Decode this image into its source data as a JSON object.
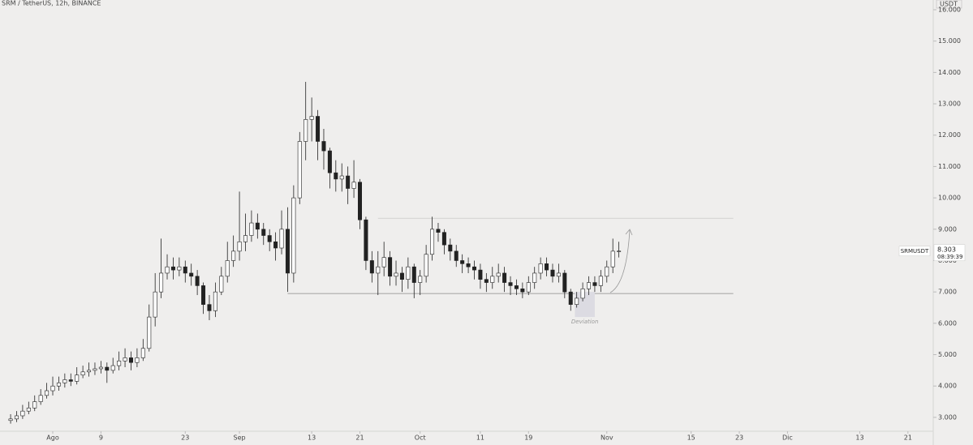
{
  "chart_data": {
    "type": "candlestick",
    "title": "SRM / TetherUS, 12h, BINANCE",
    "currency": "USDT",
    "symbol": "SRMUSDT",
    "countdown": "08:39:39",
    "last_price": {
      "value": 8.303,
      "label": "8.303"
    },
    "annotation": "Deviation",
    "up_color": "#ffffff",
    "down_color": "#222222",
    "edge_color": "#222222",
    "xlim": [
      -8.76,
      146.2
    ],
    "ylim": [
      2.61,
      16.31
    ],
    "xticks": [
      {
        "value": 0,
        "label": "Ago"
      },
      {
        "value": 8,
        "label": "9"
      },
      {
        "value": 22,
        "label": "23"
      },
      {
        "value": 31,
        "label": "Sep"
      },
      {
        "value": 43,
        "label": "13"
      },
      {
        "value": 51,
        "label": "21"
      },
      {
        "value": 61,
        "label": "Oct"
      },
      {
        "value": 71,
        "label": "11"
      },
      {
        "value": 79,
        "label": "19"
      },
      {
        "value": 92,
        "label": "Nov"
      },
      {
        "value": 106,
        "label": "15"
      },
      {
        "value": 114,
        "label": "23"
      },
      {
        "value": 122,
        "label": "Dic"
      },
      {
        "value": 134,
        "label": "13"
      },
      {
        "value": 142,
        "label": "21"
      }
    ],
    "yticks": [
      {
        "value": 3,
        "label": "3.000"
      },
      {
        "value": 4,
        "label": "4.000"
      },
      {
        "value": 5,
        "label": "5.000"
      },
      {
        "value": 6,
        "label": "6.000"
      },
      {
        "value": 7,
        "label": "7.000"
      },
      {
        "value": 8,
        "label": "8.000"
      },
      {
        "value": 9,
        "label": "9.000"
      },
      {
        "value": 10,
        "label": "10.000"
      },
      {
        "value": 11,
        "label": "11.000"
      },
      {
        "value": 12,
        "label": "12.000"
      },
      {
        "value": 13,
        "label": "13.000"
      },
      {
        "value": 14,
        "label": "14.000"
      },
      {
        "value": 15,
        "label": "15.000"
      },
      {
        "value": 16,
        "label": "16.000"
      }
    ],
    "levels": [
      {
        "value": 9.35,
        "from": 54,
        "to": 113
      },
      {
        "value": 6.95,
        "from": 39,
        "to": 113
      }
    ],
    "deviation_box": {
      "from": 86.7,
      "to": 90,
      "top": 7.0,
      "bottom": 6.2
    },
    "x": [
      -7,
      -6,
      -5,
      -4,
      -3,
      -2,
      -1,
      0,
      1,
      2,
      3,
      4,
      5,
      6,
      7,
      8,
      9,
      10,
      11,
      12,
      13,
      14,
      15,
      16,
      17,
      18,
      19,
      20,
      21,
      22,
      23,
      24,
      25,
      26,
      27,
      28,
      29,
      30,
      31,
      32,
      33,
      34,
      35,
      36,
      37,
      38,
      39,
      40,
      41,
      42,
      43,
      44,
      45,
      46,
      47,
      48,
      49,
      50,
      51,
      52,
      53,
      54,
      55,
      56,
      57,
      58,
      59,
      60,
      61,
      62,
      63,
      64,
      65,
      66,
      67,
      68,
      69,
      70,
      71,
      72,
      73,
      74,
      75,
      76,
      77,
      78,
      79,
      80,
      81,
      82,
      83,
      84,
      85,
      86,
      87,
      88,
      89,
      90,
      91,
      92,
      93,
      94
    ],
    "open": [
      2.9,
      2.95,
      3.05,
      3.2,
      3.3,
      3.5,
      3.7,
      3.85,
      4.0,
      4.1,
      4.2,
      4.15,
      4.35,
      4.45,
      4.5,
      4.55,
      4.6,
      4.5,
      4.65,
      4.8,
      4.9,
      4.75,
      4.9,
      5.2,
      6.2,
      7.0,
      7.6,
      7.8,
      7.7,
      7.8,
      7.6,
      7.5,
      7.2,
      6.6,
      6.4,
      7.0,
      7.5,
      8.0,
      8.3,
      8.6,
      8.8,
      9.2,
      9.0,
      8.8,
      8.6,
      8.4,
      9.0,
      7.6,
      10.0,
      11.8,
      12.5,
      12.6,
      11.8,
      11.5,
      10.8,
      10.6,
      10.7,
      10.3,
      10.5,
      9.3,
      8.0,
      7.6,
      7.8,
      8.1,
      7.5,
      7.6,
      7.4,
      7.8,
      7.3,
      7.5,
      8.2,
      9.0,
      8.9,
      8.5,
      8.3,
      8.0,
      7.9,
      7.8,
      7.7,
      7.4,
      7.3,
      7.5,
      7.6,
      7.3,
      7.2,
      7.1,
      7.0,
      7.3,
      7.6,
      7.9,
      7.7,
      7.5,
      7.6,
      7.0,
      6.6,
      6.8,
      7.1,
      7.3,
      7.2,
      7.5,
      7.8,
      8.3
    ],
    "high": [
      3.1,
      3.2,
      3.4,
      3.5,
      3.7,
      3.9,
      4.1,
      4.3,
      4.3,
      4.4,
      4.4,
      4.6,
      4.65,
      4.75,
      4.75,
      4.8,
      4.75,
      4.9,
      5.1,
      5.2,
      5.1,
      5.2,
      5.5,
      6.6,
      7.6,
      8.7,
      8.2,
      8.1,
      8.1,
      8.0,
      7.9,
      7.7,
      7.3,
      6.9,
      7.3,
      7.8,
      8.6,
      8.8,
      10.2,
      9.5,
      9.6,
      9.5,
      9.2,
      9.0,
      8.9,
      9.6,
      9.7,
      10.4,
      12.1,
      13.7,
      13.2,
      12.8,
      12.2,
      11.6,
      11.2,
      11.1,
      11.0,
      11.2,
      10.6,
      9.4,
      8.3,
      8.3,
      8.6,
      8.3,
      8.0,
      7.8,
      8.1,
      7.9,
      7.7,
      8.5,
      9.4,
      9.2,
      9.0,
      8.7,
      8.5,
      8.2,
      8.1,
      8.0,
      7.9,
      7.6,
      7.8,
      7.9,
      7.8,
      7.5,
      7.4,
      7.3,
      7.5,
      7.8,
      8.1,
      8.1,
      7.9,
      7.9,
      7.7,
      7.1,
      7.0,
      7.3,
      7.5,
      7.5,
      7.7,
      8.0,
      8.7,
      8.6
    ],
    "low": [
      2.8,
      2.85,
      2.95,
      3.1,
      3.2,
      3.4,
      3.6,
      3.7,
      3.85,
      3.95,
      4.0,
      4.05,
      4.25,
      4.3,
      4.35,
      4.4,
      4.1,
      4.4,
      4.5,
      4.6,
      4.5,
      4.6,
      4.8,
      5.1,
      5.9,
      6.8,
      7.4,
      7.4,
      7.5,
      7.3,
      7.2,
      6.9,
      6.3,
      6.1,
      6.2,
      6.9,
      7.3,
      7.8,
      8.0,
      8.3,
      8.6,
      8.7,
      8.5,
      8.3,
      8.0,
      8.2,
      7.0,
      7.3,
      9.8,
      11.2,
      11.8,
      11.2,
      10.9,
      10.3,
      10.2,
      10.2,
      9.8,
      10.0,
      9.0,
      7.7,
      7.3,
      6.9,
      7.5,
      7.2,
      7.2,
      7.0,
      7.1,
      6.8,
      6.9,
      7.3,
      8.0,
      8.6,
      8.2,
      8.0,
      7.8,
      7.6,
      7.6,
      7.4,
      7.1,
      7.0,
      7.1,
      7.3,
      7.0,
      6.9,
      6.9,
      6.8,
      6.9,
      7.1,
      7.4,
      7.5,
      7.3,
      7.3,
      6.8,
      6.4,
      6.5,
      6.7,
      6.9,
      7.0,
      7.0,
      7.3,
      7.6,
      8.1
    ],
    "close": [
      2.95,
      3.05,
      3.2,
      3.3,
      3.5,
      3.7,
      3.85,
      4.0,
      4.1,
      4.2,
      4.15,
      4.35,
      4.45,
      4.5,
      4.55,
      4.6,
      4.5,
      4.65,
      4.8,
      4.9,
      4.75,
      4.9,
      5.2,
      6.2,
      7.0,
      7.6,
      7.8,
      7.7,
      7.8,
      7.6,
      7.5,
      7.2,
      6.6,
      6.4,
      7.0,
      7.5,
      8.0,
      8.3,
      8.6,
      8.8,
      9.2,
      9.0,
      8.8,
      8.6,
      8.4,
      9.0,
      7.6,
      10.0,
      11.8,
      12.5,
      12.6,
      11.8,
      11.5,
      10.8,
      10.6,
      10.7,
      10.3,
      10.5,
      9.3,
      8.0,
      7.6,
      7.8,
      8.1,
      7.5,
      7.6,
      7.4,
      7.8,
      7.3,
      7.5,
      8.2,
      9.0,
      8.9,
      8.5,
      8.3,
      8.0,
      7.9,
      7.8,
      7.7,
      7.4,
      7.3,
      7.5,
      7.6,
      7.3,
      7.2,
      7.1,
      7.0,
      7.3,
      7.6,
      7.9,
      7.7,
      7.5,
      7.6,
      7.0,
      6.6,
      6.8,
      7.1,
      7.3,
      7.2,
      7.5,
      7.8,
      8.3,
      8.303
    ]
  }
}
